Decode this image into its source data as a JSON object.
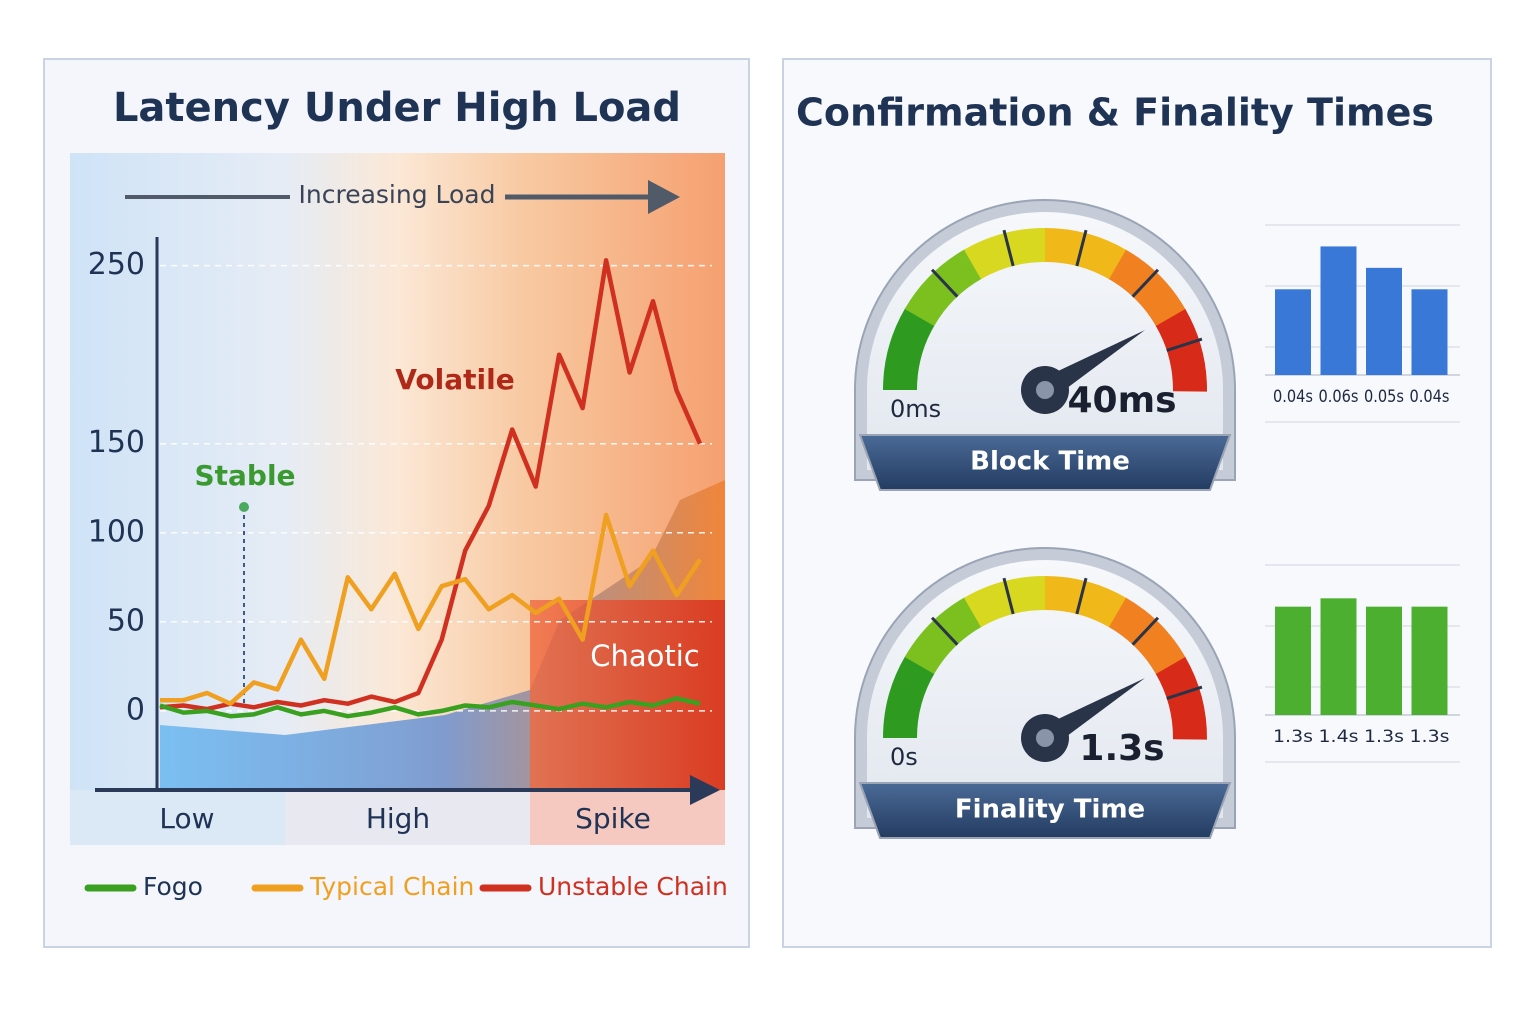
{
  "chart_data": [
    {
      "type": "line",
      "title": "Latency Under High Load",
      "load_label": "Increasing Load",
      "annotations": {
        "stable": "Stable",
        "volatile": "Volatile",
        "chaotic": "Chaotic"
      },
      "zones": [
        "Low",
        "High",
        "Spike"
      ],
      "ylim": [
        -45,
        270
      ],
      "yticks": [
        0,
        50,
        100,
        150,
        250
      ],
      "grid": true,
      "series": [
        {
          "name": "Fogo",
          "color": "#3aa020",
          "values": [
            3,
            -1,
            0,
            -3,
            -2,
            2,
            -2,
            0,
            -3,
            -1,
            2,
            -2,
            0,
            3,
            2,
            5,
            3,
            1,
            4,
            2,
            5,
            3,
            7,
            4
          ]
        },
        {
          "name": "Typical Chain",
          "color": "#f0a020",
          "values": [
            6,
            6,
            10,
            4,
            16,
            12,
            40,
            18,
            75,
            57,
            77,
            46,
            70,
            74,
            57,
            65,
            55,
            63,
            40,
            110,
            70,
            90,
            65,
            85
          ]
        },
        {
          "name": "Unstable Chain",
          "color": "#d03020",
          "values": [
            2,
            3,
            1,
            4,
            2,
            5,
            3,
            6,
            4,
            8,
            5,
            10,
            40,
            90,
            115,
            158,
            126,
            200,
            170,
            253,
            190,
            230,
            180,
            150
          ]
        }
      ]
    },
    {
      "type": "bar",
      "title": "Confirmation & Finality Times",
      "gauge": {
        "label": "Block Time",
        "min_label": "0ms",
        "value_label": "40ms"
      },
      "values": [
        0.04,
        0.06,
        0.05,
        0.04
      ],
      "value_labels": [
        "0.04s",
        "0.06s",
        "0.05s",
        "0.04s"
      ],
      "color": "#3a78d8",
      "ylim": [
        0,
        0.07
      ]
    },
    {
      "type": "bar",
      "gauge": {
        "label": "Finality Time",
        "min_label": "0s",
        "value_label": "1.3s"
      },
      "values": [
        1.3,
        1.4,
        1.3,
        1.3
      ],
      "value_labels": [
        "1.3s",
        "1.4s",
        "1.3s",
        "1.3s"
      ],
      "color": "#4caf30",
      "ylim": [
        0,
        1.8
      ]
    }
  ]
}
